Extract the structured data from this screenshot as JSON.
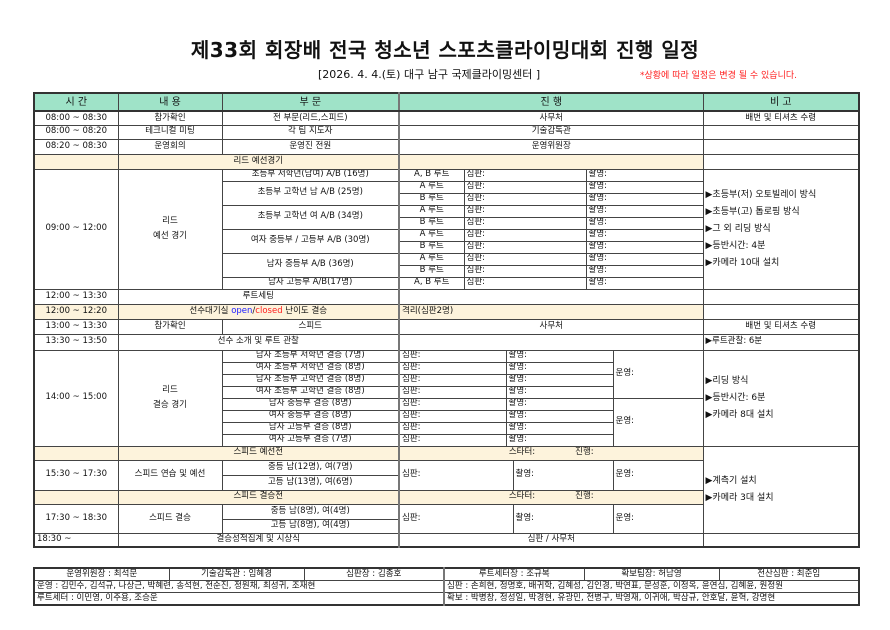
{
  "title": "제33회 회장배 전국 청소년 스포츠클라이밍대회 진행 일정",
  "subtitle": "[2026. 4. 4.(토) 대구 남구 국제클라이밍센터 ]",
  "notice": "*상황에 따라 일정은 변경 될 수 있습니다.",
  "colors": {
    "header_bg": "#9fe3c8",
    "section_bg": "#fdf3dc",
    "open": "#2020ff",
    "closed": "#ff2020",
    "notice": "#ff2020"
  },
  "headers": [
    "시 간",
    "내 용",
    "부 문",
    "진 행",
    "비 고"
  ],
  "rows": [
    {
      "time": "08:00 ~ 08:30",
      "content": "참가확인",
      "division": "전 부문(리드,스피드)",
      "progress": "사무처",
      "note": "배번 및 티셔츠 수령"
    },
    {
      "time": "08:00 ~ 08:20",
      "content": "테크니컬 미팅",
      "division": "각 팀 지도자",
      "progress": "기술감독관",
      "note": ""
    },
    {
      "time": "08:20 ~ 08:30",
      "content": "운영회의",
      "division": "운영진 전원",
      "progress": "운영위원장",
      "note": ""
    }
  ],
  "lead_prelim": {
    "header": "리드 예선경기",
    "time": "09:00 ~ 12:00",
    "content1": "리드",
    "content2": "예선 경기",
    "divisions": [
      "초등부 저학년(남여) A/B (16명)",
      "초등부 고학년 남 A/B (25명)",
      "초등부 고학년 여 A/B (34명)",
      "여자 중등부 / 고등부 A/B (30명)",
      "남자 중등부 A/B (36명)",
      "남자 고등부 A/B(17명)"
    ],
    "routes": [
      "A, B 루트",
      "A 루트",
      "B 루트",
      "A 루트",
      "B 루트",
      "A 루트",
      "B 루트",
      "A 루트",
      "B 루트",
      "A, B 루트"
    ],
    "judge": "심판:",
    "camera": "촬영:",
    "notes": [
      "▶초등부(저) 오토빌레이 방식",
      "▶초등부(고) 톱로핑 방식",
      "▶그 외 리딩 방식",
      "▶등반시간: 4분",
      "▶카메라 10대 설치"
    ]
  },
  "route_setting": {
    "time": "12:00 ~ 13:30",
    "content": "루트세팅"
  },
  "isolation": {
    "time": "12:00 ~ 12:20",
    "prefix": "선수대기실 ",
    "open": "open",
    "slash": "/",
    "closed": "closed",
    "suffix": " 난이도 결승",
    "progress": "격리(심판2명)"
  },
  "speed_check": {
    "time": "13:00 ~ 13:30",
    "content": "참가확인",
    "division": "스피드",
    "progress": "사무처",
    "note": "배번 및 티셔츠 수령"
  },
  "intro": {
    "time": "13:30 ~ 13:50",
    "content": "선수 소개 및 루트 관찰",
    "note": "▶루트관찰: 6분"
  },
  "lead_final": {
    "time": "14:00 ~ 15:00",
    "content1": "리드",
    "content2": "결승 경기",
    "divisions": [
      "남자 초등부 저학년 결승 (7명)",
      "여자 초등부 저학년 결승 (8명)",
      "남자 초등부 고학년 결승 (8명)",
      "여자 초등부 고학년 결승 (8명)",
      "남자 중등부 결승 (8명)",
      "여자 중등부 결승 (8명)",
      "남자 고등부 결승 (8명)",
      "여자 고등부 결승 (7명)"
    ],
    "judge": "심판:",
    "camera": "촬영:",
    "ops": "운영:",
    "notes": [
      "▶리딩 방식",
      "▶등반시간: 6분",
      "▶카메라 8대 설치"
    ]
  },
  "speed": {
    "starter": "스타터:",
    "progress_label": "진행:",
    "judge": "심판:",
    "camera": "촬영:",
    "ops": "운영:",
    "prelim_header": "스피드 예선전",
    "prelim": {
      "time": "15:30 ~ 17:30",
      "content": "스피드 연습 및 예선",
      "div1": "중등 남(12명), 여(7명)",
      "div2": "고등 남(13명), 여(6명)"
    },
    "final_header": "스피드 결승전",
    "final": {
      "time": "17:30 ~ 18:30",
      "content": "스피드 결승",
      "div1": "중등 남(8명), 여(4명)",
      "div2": "고등 남(8명), 여(4명)"
    },
    "notes": [
      "▶계측기 설치",
      "▶카메라 3대 설치"
    ]
  },
  "awards": {
    "time": "18:30 ~",
    "content": "결승성적집계 및 시상식",
    "progress": "심판 / 사무처"
  },
  "footer": {
    "officials": [
      "운영위원장 : 최석문",
      "기술감독관 : 임혜경",
      "심판장 : 김종호",
      "루트세터장 : 조규복",
      "확보팀장: 허남영",
      "전산심판 : 최준임"
    ],
    "operations": "운영 : 김민수, 김석규, 나상근, 박혜련, 송석현, 전순진, 정원채, 최성귀, 조재현",
    "judges": "심판 : 손희현, 정명호, 배귀학, 김혜성, 김인경, 박연표, 문성훈, 이정옥, 윤연심, 김혜윤, 원정원",
    "setters": "루트세터 : 이민영, 이주용, 조승운",
    "belayers": "확보 : 박병창, 정성일, 박경현, 유광민, 전병구, 박영재, 이귀애, 박삼규, 안호달, 윤혁, 강명현"
  }
}
